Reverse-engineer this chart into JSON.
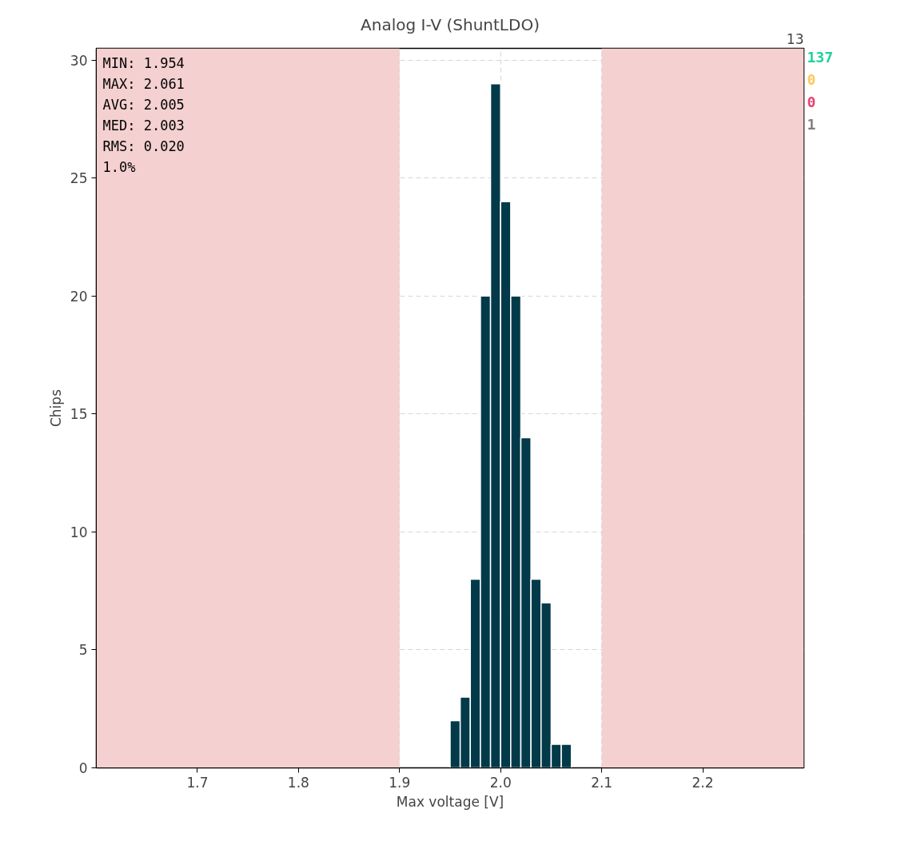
{
  "chart_data": {
    "type": "histogram",
    "title": "Analog I-V (ShuntLDO)",
    "xlabel": "Max voltage [V]",
    "ylabel": "Chips",
    "bins": [
      1.95,
      1.96,
      1.97,
      1.98,
      1.99,
      2.0,
      2.01,
      2.02,
      2.03,
      2.04,
      2.05,
      2.06,
      2.07
    ],
    "values": [
      2,
      3,
      8,
      20,
      29,
      24,
      20,
      14,
      8,
      7,
      1,
      1
    ],
    "color": "#023a4a",
    "xlim": [
      1.6,
      2.3
    ],
    "ylim": [
      0,
      30.5
    ],
    "xticks": [
      1.7,
      1.8,
      1.9,
      {
        "value": 2.0,
        "label": "2.0"
      },
      2.1,
      2.2
    ],
    "yticks": [
      0,
      5,
      10,
      15,
      20,
      25,
      30
    ],
    "bands": [
      {
        "axis": "x",
        "from": 1.6,
        "to": 1.9,
        "color": "#f4d0d0"
      },
      {
        "axis": "x",
        "from": 2.1,
        "to": 2.3,
        "color": "#f4d0d0"
      }
    ],
    "grid": true,
    "annotations": [
      "MIN: 1.954",
      "MAX: 2.061",
      "AVG: 2.005",
      "MED: 2.003",
      "RMS: 0.020",
      "      1.0%",
      "13",
      "137",
      "0",
      "0",
      "1"
    ]
  }
}
